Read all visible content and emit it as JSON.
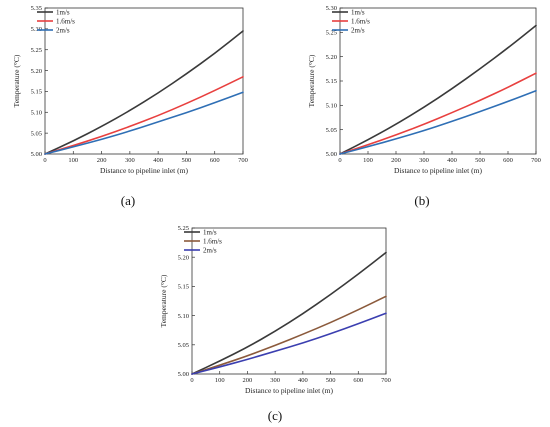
{
  "chart_data": [
    {
      "type": "line",
      "panel_label": "(a)",
      "xlabel": "Distance to pipeline inlet (m)",
      "ylabel": "Temperature (°C)",
      "xlim": [
        0,
        700
      ],
      "ylim": [
        5.0,
        5.35
      ],
      "xticks": [
        0,
        100,
        200,
        300,
        400,
        500,
        600,
        700
      ],
      "yticks": [
        5.0,
        5.05,
        5.1,
        5.15,
        5.2,
        5.25,
        5.3,
        5.35
      ],
      "ytick_labels": [
        "5.00",
        "5.05",
        "5.10",
        "5.15",
        "5.20",
        "5.25",
        "5.30",
        "5.35"
      ],
      "legend_position": "top-left",
      "grid": false,
      "series": [
        {
          "name": "1m/s",
          "color": "#3a3a3a",
          "x": [
            0,
            100,
            200,
            300,
            400,
            500,
            600,
            700
          ],
          "y": [
            5.0,
            5.031,
            5.066,
            5.104,
            5.146,
            5.192,
            5.241,
            5.295
          ]
        },
        {
          "name": "1.6m/s",
          "color": "#e8403f",
          "x": [
            0,
            100,
            200,
            300,
            400,
            500,
            600,
            700
          ],
          "y": [
            5.0,
            5.02,
            5.042,
            5.066,
            5.092,
            5.121,
            5.152,
            5.185
          ]
        },
        {
          "name": "2m/s",
          "color": "#2f6fb5",
          "x": [
            0,
            100,
            200,
            300,
            400,
            500,
            600,
            700
          ],
          "y": [
            5.0,
            5.017,
            5.035,
            5.055,
            5.077,
            5.099,
            5.123,
            5.148
          ]
        }
      ]
    },
    {
      "type": "line",
      "panel_label": "(b)",
      "xlabel": "Distance to pipeline inlet (m)",
      "ylabel": "Temperature (°C)",
      "xlim": [
        0,
        700
      ],
      "ylim": [
        5.0,
        5.3
      ],
      "xticks": [
        0,
        100,
        200,
        300,
        400,
        500,
        600,
        700
      ],
      "yticks": [
        5.0,
        5.05,
        5.1,
        5.15,
        5.2,
        5.25,
        5.3
      ],
      "ytick_labels": [
        "5.00",
        "5.05",
        "5.10",
        "5.15",
        "5.20",
        "5.25",
        "5.30"
      ],
      "legend_position": "top-left",
      "grid": false,
      "series": [
        {
          "name": "1m/s",
          "color": "#3a3a3a",
          "x": [
            0,
            100,
            200,
            300,
            400,
            500,
            600,
            700
          ],
          "y": [
            5.0,
            5.029,
            5.061,
            5.096,
            5.134,
            5.175,
            5.218,
            5.264
          ]
        },
        {
          "name": "1.6m/s",
          "color": "#e8403f",
          "x": [
            0,
            100,
            200,
            300,
            400,
            500,
            600,
            700
          ],
          "y": [
            5.0,
            5.019,
            5.039,
            5.061,
            5.085,
            5.11,
            5.137,
            5.166
          ]
        },
        {
          "name": "2m/s",
          "color": "#2f6fb5",
          "x": [
            0,
            100,
            200,
            300,
            400,
            500,
            600,
            700
          ],
          "y": [
            5.0,
            5.015,
            5.031,
            5.048,
            5.067,
            5.087,
            5.108,
            5.13
          ]
        }
      ]
    },
    {
      "type": "line",
      "panel_label": "(c)",
      "xlabel": "Distance to pipeline inlet (m)",
      "ylabel": "Temperature (°C)",
      "xlim": [
        0,
        700
      ],
      "ylim": [
        5.0,
        5.25
      ],
      "xticks": [
        0,
        100,
        200,
        300,
        400,
        500,
        600,
        700
      ],
      "yticks": [
        5.0,
        5.05,
        5.1,
        5.15,
        5.2,
        5.25
      ],
      "ytick_labels": [
        "5.00",
        "5.05",
        "5.10",
        "5.15",
        "5.20",
        "5.25"
      ],
      "legend_position": "top-left",
      "grid": false,
      "series": [
        {
          "name": "1m/s",
          "color": "#3a3a3a",
          "x": [
            0,
            100,
            200,
            300,
            400,
            500,
            600,
            700
          ],
          "y": [
            5.0,
            5.022,
            5.046,
            5.073,
            5.103,
            5.136,
            5.171,
            5.208
          ]
        },
        {
          "name": "1.6m/s",
          "color": "#8b5a3c",
          "x": [
            0,
            100,
            200,
            300,
            400,
            500,
            600,
            700
          ],
          "y": [
            5.0,
            5.015,
            5.031,
            5.049,
            5.068,
            5.088,
            5.11,
            5.133
          ]
        },
        {
          "name": "2m/s",
          "color": "#3b3fb0",
          "x": [
            0,
            100,
            200,
            300,
            400,
            500,
            600,
            700
          ],
          "y": [
            5.0,
            5.012,
            5.025,
            5.039,
            5.053,
            5.069,
            5.086,
            5.104
          ]
        }
      ]
    }
  ]
}
